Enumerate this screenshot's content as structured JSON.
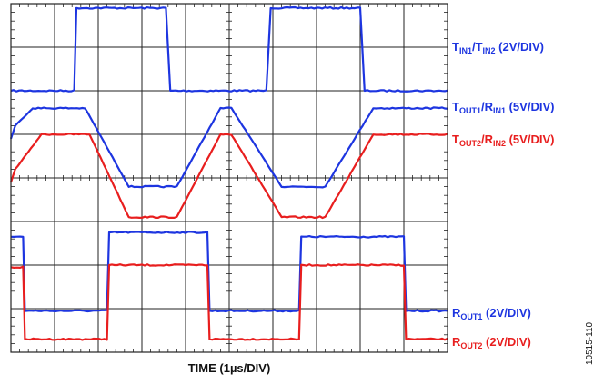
{
  "chart_data": {
    "type": "line",
    "xlabel": "TIME (1µs/DIV)",
    "x_unit_per_div": "1µs/DIV",
    "divisions": {
      "x": 10,
      "y": 8
    },
    "grid": true,
    "legend_placement": "right of plot, beside each trace",
    "series": [
      {
        "name": "TIN1/TIN2 (2V/DIV)",
        "label": {
          "main1": "T",
          "sub1": "IN1",
          "mid": "/T",
          "sub2": "IN2",
          "tail": " (2V/DIV)"
        },
        "color": "#1d35e0",
        "x_div": [
          0,
          1.45,
          1.5,
          3.55,
          3.65,
          5.0,
          5.05,
          5.85,
          5.95,
          8.0,
          8.1,
          10
        ],
        "y_div": [
          2.0,
          2.0,
          3.9,
          3.9,
          2.0,
          2.0,
          2.0,
          2.0,
          3.9,
          3.9,
          2.0,
          2.0
        ]
      },
      {
        "name": "TOUT1/RIN1 (5V/DIV)",
        "label": {
          "main1": "T",
          "sub1": "OUT1",
          "mid": "/R",
          "sub2": "IN1",
          "tail": " (5V/DIV)"
        },
        "color": "#1d35e0",
        "x_div": [
          0,
          0.1,
          0.5,
          1.7,
          2.7,
          3.8,
          4.8,
          5.05,
          6.2,
          7.2,
          8.3,
          9.3,
          10
        ],
        "y_div": [
          0.9,
          1.2,
          1.6,
          1.6,
          -0.2,
          -0.2,
          1.6,
          1.6,
          -0.2,
          -0.2,
          1.6,
          1.6,
          1.6
        ]
      },
      {
        "name": "TOUT2/RIN2 (5V/DIV)",
        "label": {
          "main1": "T",
          "sub1": "OUT2",
          "mid": "/R",
          "sub2": "IN2",
          "tail": " (5V/DIV)"
        },
        "color": "#e81e1e",
        "x_div": [
          0,
          0.1,
          0.7,
          1.8,
          2.7,
          3.8,
          4.8,
          5.05,
          6.2,
          7.2,
          8.3,
          9.3,
          10
        ],
        "y_div": [
          -0.1,
          0.2,
          1.0,
          1.0,
          -0.9,
          -0.9,
          1.0,
          1.0,
          -0.9,
          -0.9,
          1.0,
          1.0,
          1.0
        ]
      },
      {
        "name": "ROUT1 (2V/DIV)",
        "label": {
          "main1": "R",
          "sub1": "OUT1",
          "mid": "",
          "sub2": "",
          "tail": " (2V/DIV)"
        },
        "color": "#1d35e0",
        "x_div": [
          0,
          0.28,
          0.32,
          2.2,
          2.25,
          4.5,
          4.55,
          6.6,
          6.65,
          9.0,
          9.05,
          10
        ],
        "y_div": [
          -1.35,
          -1.35,
          -3.05,
          -3.05,
          -1.25,
          -1.25,
          -3.05,
          -3.05,
          -1.35,
          -1.35,
          -3.05,
          -3.05
        ]
      },
      {
        "name": "ROUT2 (2V/DIV)",
        "label": {
          "main1": "R",
          "sub1": "OUT2",
          "mid": "",
          "sub2": "",
          "tail": " (2V/DIV)"
        },
        "color": "#e81e1e",
        "x_div": [
          0,
          0.28,
          0.32,
          2.2,
          2.25,
          4.5,
          4.55,
          6.6,
          6.65,
          9.0,
          9.05,
          10
        ],
        "y_div": [
          -2.05,
          -2.05,
          -3.7,
          -3.7,
          -2.0,
          -2.0,
          -3.7,
          -3.7,
          -2.0,
          -2.0,
          -3.7,
          -3.7
        ]
      }
    ],
    "figure_id": "10515-110"
  }
}
